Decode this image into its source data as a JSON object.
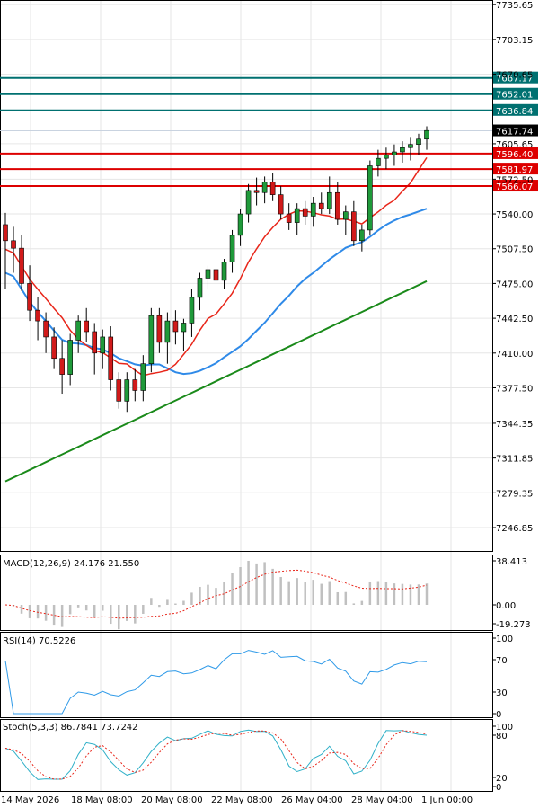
{
  "chart_data": {
    "type": "candlestick",
    "price_axis_ticks": [
      "7735.65",
      "7703.15",
      "7670.65",
      "7605.65",
      "7572.50",
      "7540.00",
      "7507.50",
      "7475.00",
      "7442.50",
      "7410.00",
      "7377.50",
      "7344.35",
      "7311.85",
      "7279.35",
      "7246.85"
    ],
    "price_range": [
      7225,
      7740
    ],
    "time_labels": [
      "14 May 2026",
      "18 May 08:00",
      "20 May 08:00",
      "22 May 08:00",
      "26 May 04:00",
      "28 May 04:00",
      "1 Jun 00:00"
    ],
    "horizontal_lines": [
      {
        "value": 7667.17,
        "label": "7667.17",
        "color": "#007070"
      },
      {
        "value": 7652.01,
        "label": "7652.01",
        "color": "#007070"
      },
      {
        "value": 7636.84,
        "label": "7636.84",
        "color": "#007070"
      },
      {
        "value": 7596.4,
        "label": "7596.40",
        "color": "#dd0000"
      },
      {
        "value": 7581.97,
        "label": "7581.97",
        "color": "#dd0000"
      },
      {
        "value": 7566.07,
        "label": "7566.07",
        "color": "#dd0000"
      }
    ],
    "current_price": {
      "value": 7617.74,
      "label": "7617.74"
    },
    "candles": [
      [
        7530,
        7541,
        7470,
        7515
      ],
      [
        7515,
        7528,
        7485,
        7508
      ],
      [
        7508,
        7520,
        7468,
        7475
      ],
      [
        7475,
        7492,
        7440,
        7450
      ],
      [
        7450,
        7462,
        7422,
        7440
      ],
      [
        7440,
        7448,
        7410,
        7425
      ],
      [
        7425,
        7434,
        7395,
        7405
      ],
      [
        7405,
        7422,
        7372,
        7390
      ],
      [
        7390,
        7428,
        7380,
        7422
      ],
      [
        7422,
        7445,
        7410,
        7440
      ],
      [
        7440,
        7452,
        7420,
        7430
      ],
      [
        7430,
        7438,
        7390,
        7410
      ],
      [
        7410,
        7432,
        7395,
        7425
      ],
      [
        7425,
        7435,
        7375,
        7385
      ],
      [
        7385,
        7392,
        7358,
        7365
      ],
      [
        7365,
        7392,
        7355,
        7385
      ],
      [
        7385,
        7395,
        7365,
        7375
      ],
      [
        7375,
        7408,
        7365,
        7400
      ],
      [
        7400,
        7452,
        7392,
        7445
      ],
      [
        7445,
        7452,
        7410,
        7420
      ],
      [
        7420,
        7448,
        7400,
        7440
      ],
      [
        7440,
        7450,
        7418,
        7430
      ],
      [
        7430,
        7442,
        7412,
        7438
      ],
      [
        7438,
        7470,
        7425,
        7462
      ],
      [
        7462,
        7485,
        7450,
        7480
      ],
      [
        7480,
        7492,
        7470,
        7488
      ],
      [
        7488,
        7505,
        7472,
        7478
      ],
      [
        7478,
        7498,
        7470,
        7495
      ],
      [
        7495,
        7525,
        7485,
        7520
      ],
      [
        7520,
        7545,
        7510,
        7540
      ],
      [
        7540,
        7568,
        7532,
        7562
      ],
      [
        7562,
        7574,
        7548,
        7560
      ],
      [
        7560,
        7575,
        7550,
        7570
      ],
      [
        7570,
        7578,
        7552,
        7558
      ],
      [
        7558,
        7566,
        7535,
        7540
      ],
      [
        7540,
        7550,
        7525,
        7532
      ],
      [
        7532,
        7550,
        7520,
        7545
      ],
      [
        7545,
        7552,
        7530,
        7538
      ],
      [
        7538,
        7556,
        7528,
        7550
      ],
      [
        7550,
        7560,
        7540,
        7545
      ],
      [
        7545,
        7575,
        7540,
        7560
      ],
      [
        7560,
        7570,
        7530,
        7535
      ],
      [
        7535,
        7548,
        7520,
        7542
      ],
      [
        7542,
        7552,
        7510,
        7515
      ],
      [
        7515,
        7530,
        7505,
        7525
      ],
      [
        7525,
        7590,
        7520,
        7585
      ],
      [
        7585,
        7600,
        7575,
        7592
      ],
      [
        7592,
        7602,
        7582,
        7595
      ],
      [
        7595,
        7605,
        7585,
        7598
      ],
      [
        7598,
        7608,
        7588,
        7602
      ],
      [
        7602,
        7612,
        7590,
        7605
      ],
      [
        7605,
        7615,
        7595,
        7610
      ],
      [
        7610,
        7622,
        7600,
        7618
      ]
    ],
    "ma_slow_color": "#e8261a",
    "ma_mid_color": "#2f8ae8",
    "ma_long_color": "#1a8a1a",
    "macd": {
      "label": "MACD(12,26,9) 24.176 21.550",
      "ticks": [
        "38.413",
        "0.00",
        "-19.273"
      ],
      "range": [
        -19.273,
        38.413
      ]
    },
    "rsi": {
      "label": "RSI(14) 70.5226",
      "ticks": [
        "100",
        "70",
        "30",
        "0"
      ],
      "range": [
        0,
        100
      ]
    },
    "stoch": {
      "label": "Stoch(5,3,3) 86.7841 73.7242",
      "ticks": [
        "100",
        "80",
        "20",
        "0"
      ],
      "range": [
        0,
        100
      ]
    }
  }
}
